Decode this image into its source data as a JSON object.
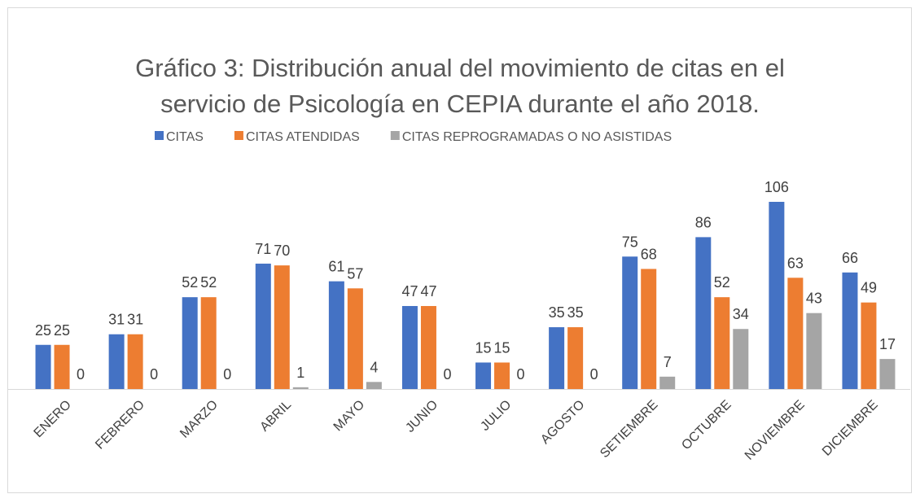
{
  "chart_data": {
    "type": "bar",
    "title": "Gráfico 3: Distribución anual del movimiento de citas en el servicio de Psicología en CEPIA durante el año 2018.",
    "categories": [
      "ENERO",
      "FEBRERO",
      "MARZO",
      "ABRIL",
      "MAYO",
      "JUNIO",
      "JULIO",
      "AGOSTO",
      "SETIEMBRE",
      "OCTUBRE",
      "NOVIEMBRE",
      "DICIEMBRE"
    ],
    "series": [
      {
        "name": "CITAS",
        "color": "#4472c4",
        "values": [
          25,
          31,
          52,
          71,
          61,
          47,
          15,
          35,
          75,
          86,
          106,
          66
        ]
      },
      {
        "name": "CITAS ATENDIDAS",
        "color": "#ed7d31",
        "values": [
          25,
          31,
          52,
          70,
          57,
          47,
          15,
          35,
          68,
          52,
          63,
          49
        ]
      },
      {
        "name": "CITAS REPROGRAMADAS O NO ASISTIDAS",
        "color": "#a5a5a5",
        "values": [
          0,
          0,
          0,
          1,
          4,
          0,
          0,
          0,
          7,
          34,
          43,
          17
        ]
      }
    ],
    "legend": "top"
  }
}
